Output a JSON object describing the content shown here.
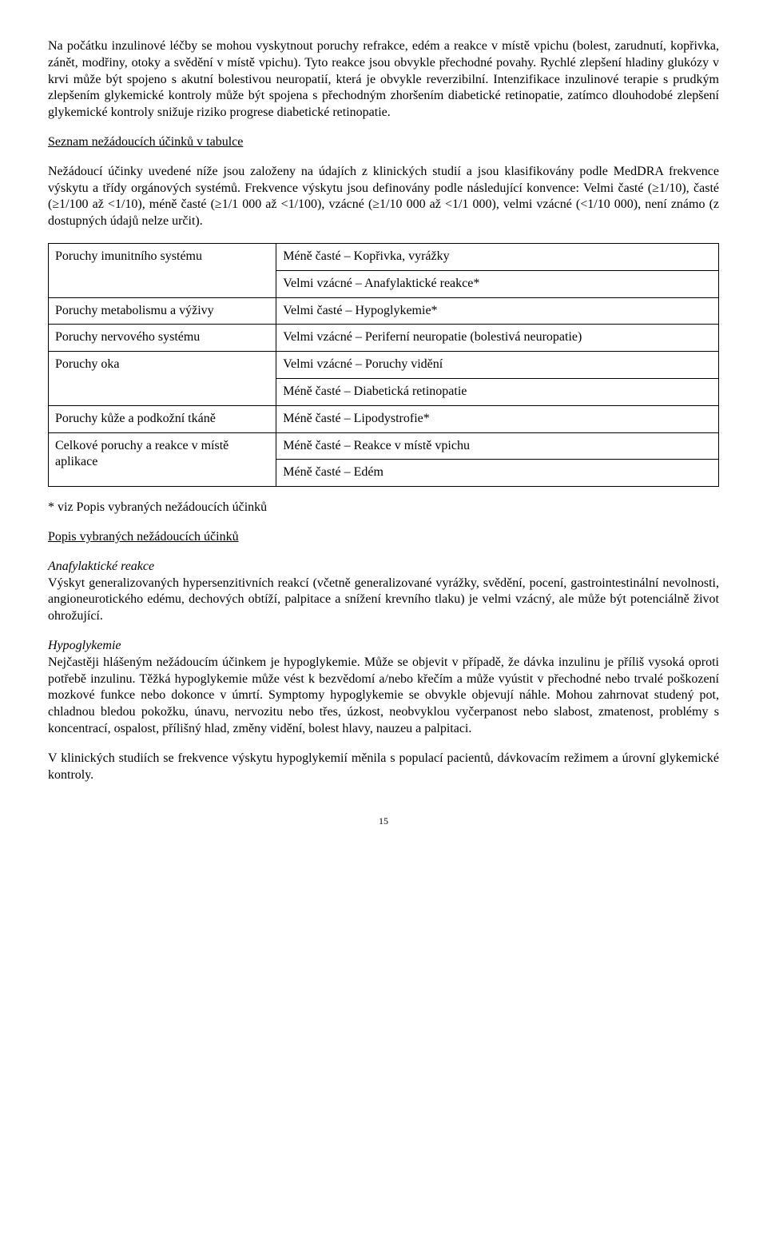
{
  "paragraphs": {
    "p1": "Na počátku inzulinové léčby se mohou vyskytnout poruchy refrakce, edém a reakce v místě vpichu (bolest, zarudnutí, kopřivka, zánět, modřiny, otoky a svědění v místě vpichu). Tyto reakce jsou obvykle přechodné povahy. Rychlé zlepšení hladiny glukózy v krvi může být spojeno s akutní bolestivou neuropatií, která je obvykle reverzibilní. Intenzifikace inzulinové terapie s prudkým zlepšením glykemické kontroly může být spojena s přechodným zhoršením diabetické retinopatie, zatímco dlouhodobé zlepšení glykemické kontroly snižuje riziko progrese diabetické retinopatie.",
    "heading1": "Seznam nežádoucích účinků v tabulce",
    "p2": "Nežádoucí účinky uvedené níže jsou založeny na údajích z klinických studií a jsou klasifikovány podle MedDRA frekvence výskytu a třídy orgánových systémů. Frekvence výskytu jsou definovány podle následující konvence: Velmi časté (≥1/10), časté (≥1/100 až <1/10), méně časté (≥1/1 000 až <1/100), vzácné (≥1/10 000 až <1/1 000), velmi vzácné (<1/10 000), není známo (z dostupných údajů nelze určit).",
    "note": "* viz Popis vybraných nežádoucích účinků",
    "heading2": "Popis vybraných nežádoucích účinků",
    "sub1": "Anafylaktické reakce",
    "p3": "Výskyt generalizovaných hypersenzitivních reakcí (včetně generalizované vyrážky, svědění, pocení, gastrointestinální nevolnosti, angioneurotického edému, dechových obtíží, palpitace a snížení krevního tlaku) je velmi vzácný, ale může být potenciálně život ohrožující.",
    "sub2": "Hypoglykemie",
    "p4": "Nejčastěji hlášeným nežádoucím účinkem je hypoglykemie. Může se objevit v případě, že dávka inzulinu je příliš vysoká oproti potřebě inzulinu. Těžká hypoglykemie může vést k bezvědomí a/nebo křečím a může vyústit v přechodné nebo trvalé poškození mozkové funkce nebo dokonce v úmrtí. Symptomy hypoglykemie se obvykle objevují náhle. Mohou zahrnovat studený pot, chladnou bledou pokožku, únavu, nervozitu nebo třes, úzkost, neobvyklou vyčerpanost nebo slabost, zmatenost, problémy s koncentrací, ospalost, přílišný hlad, změny vidění, bolest hlavy, nauzeu a palpitaci.",
    "p5": "V klinických studiích se frekvence výskytu hypoglykemií měnila s populací pacientů, dávkovacím režimem a úrovní glykemické kontroly."
  },
  "table": {
    "rows": [
      {
        "label": "Poruchy imunitního systému",
        "value": "Méně časté – Kopřivka, vyrážky",
        "rowspan": 2,
        "first": true
      },
      {
        "value": "Velmi vzácné – Anafylaktické reakce*"
      },
      {
        "label": "Poruchy metabolismu a výživy",
        "value": "Velmi časté – Hypoglykemie*",
        "first": true
      },
      {
        "label": "Poruchy nervového systému",
        "value": "Velmi vzácné – Periferní neuropatie (bolestivá neuropatie)",
        "first": true
      },
      {
        "label": "Poruchy oka",
        "value": "Velmi vzácné – Poruchy vidění",
        "rowspan": 2,
        "first": true
      },
      {
        "value": "Méně časté – Diabetická retinopatie"
      },
      {
        "label": "Poruchy kůže a podkožní tkáně",
        "value": "Méně časté – Lipodystrofie*",
        "first": true
      },
      {
        "label": "Celkové poruchy a reakce v místě aplikace",
        "value": "Méně časté – Reakce v místě vpichu",
        "rowspan": 2,
        "first": true
      },
      {
        "value": "Méně časté – Edém"
      }
    ]
  },
  "pageNumber": "15"
}
